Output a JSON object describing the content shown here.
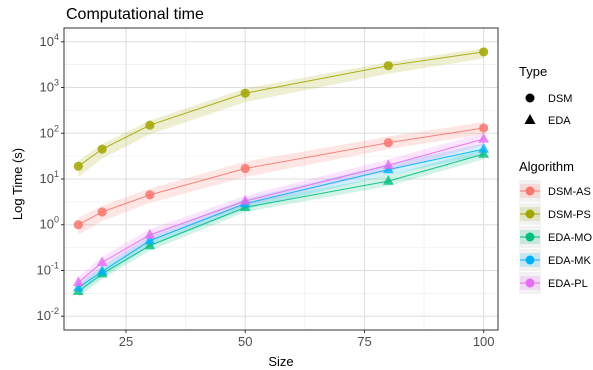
{
  "chart_data": {
    "type": "line",
    "title": "Computational time",
    "xlabel": "Size",
    "ylabel": "Log Time (s)",
    "x": [
      15,
      20,
      30,
      50,
      80,
      100
    ],
    "xlim": [
      12,
      103
    ],
    "ylim": [
      0.005,
      20000
    ],
    "y_scale": "log",
    "x_ticks": [
      25,
      50,
      75,
      100
    ],
    "x_tick_labels": [
      "25",
      "50",
      "75",
      "100"
    ],
    "y_ticks": [
      0.01,
      0.1,
      1,
      10,
      100,
      1000,
      10000
    ],
    "y_tick_labels": [
      {
        "base": "10",
        "exp": "-2"
      },
      {
        "base": "10",
        "exp": "-1"
      },
      {
        "base": "10",
        "exp": "0"
      },
      {
        "base": "10",
        "exp": "1"
      },
      {
        "base": "10",
        "exp": "2"
      },
      {
        "base": "10",
        "exp": "3"
      },
      {
        "base": "10",
        "exp": "4"
      }
    ],
    "grid": true,
    "legend_placement": "right",
    "series": [
      {
        "name": "DSM-AS",
        "type": "DSM",
        "color": "#F8766D",
        "values": [
          1.0,
          1.9,
          4.5,
          17,
          62,
          130
        ],
        "lower": [
          0.6,
          1.2,
          3.0,
          11,
          45,
          95
        ],
        "upper": [
          1.4,
          2.6,
          6.2,
          24,
          85,
          175
        ]
      },
      {
        "name": "DSM-PS",
        "type": "DSM",
        "color": "#A3A500",
        "values": [
          19,
          45,
          150,
          750,
          3000,
          6000
        ],
        "lower": [
          11,
          28,
          95,
          480,
          2000,
          4300
        ],
        "upper": [
          25,
          58,
          190,
          950,
          3600,
          7200
        ]
      },
      {
        "name": "EDA-MO",
        "type": "EDA",
        "color": "#00BF7D",
        "values": [
          0.035,
          0.085,
          0.35,
          2.4,
          9,
          35
        ],
        "lower": [
          0.026,
          0.065,
          0.27,
          1.9,
          7,
          27
        ],
        "upper": [
          0.045,
          0.11,
          0.45,
          3.0,
          12,
          45
        ]
      },
      {
        "name": "EDA-MK",
        "type": "EDA",
        "color": "#00B0F6",
        "values": [
          0.042,
          0.095,
          0.45,
          2.9,
          16,
          45
        ],
        "lower": [
          0.032,
          0.073,
          0.34,
          2.2,
          12,
          34
        ],
        "upper": [
          0.055,
          0.125,
          0.58,
          3.7,
          21,
          60
        ]
      },
      {
        "name": "EDA-PL",
        "type": "EDA",
        "color": "#E76BF3",
        "values": [
          0.055,
          0.15,
          0.6,
          3.3,
          20,
          75
        ],
        "lower": [
          0.042,
          0.11,
          0.45,
          2.6,
          15,
          55
        ],
        "upper": [
          0.072,
          0.2,
          0.8,
          4.3,
          27,
          100
        ]
      }
    ],
    "legend": {
      "type_title": "Type",
      "type_items": [
        {
          "label": "DSM",
          "shape": "circle"
        },
        {
          "label": "EDA",
          "shape": "triangle"
        }
      ],
      "algorithm_title": "Algorithm",
      "algorithm_items": [
        "DSM-AS",
        "DSM-PS",
        "EDA-MO",
        "EDA-MK",
        "EDA-PL"
      ]
    }
  }
}
